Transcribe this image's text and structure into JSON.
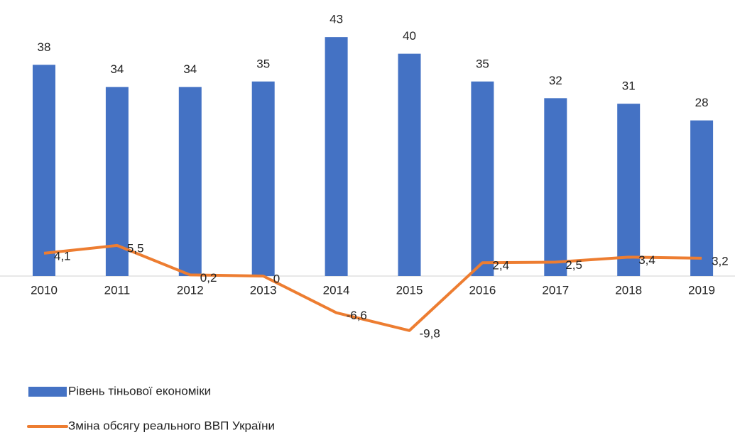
{
  "chart_data": {
    "type": "bar",
    "categories": [
      "2010",
      "2011",
      "2012",
      "2013",
      "2014",
      "2015",
      "2016",
      "2017",
      "2018",
      "2019"
    ],
    "series": [
      {
        "name": "Рівень тіньової економіки",
        "type": "bar",
        "color": "#4472c4",
        "values": [
          38,
          34,
          34,
          35,
          43,
          40,
          35,
          32,
          31,
          28
        ]
      },
      {
        "name": "Зміна обсягу реального ВВП України",
        "type": "line",
        "color": "#ed7d31",
        "values": [
          4.1,
          5.5,
          0.2,
          0,
          -6.6,
          -9.8,
          2.4,
          2.5,
          3.4,
          3.2
        ],
        "value_labels": [
          "4,1",
          "5,5",
          "0,2",
          "0",
          "-6,6",
          "-9,8",
          "2,4",
          "2,5",
          "3,4",
          "3,2"
        ]
      }
    ],
    "ylim": [
      -12,
      48
    ],
    "legend": "bottom-left"
  }
}
